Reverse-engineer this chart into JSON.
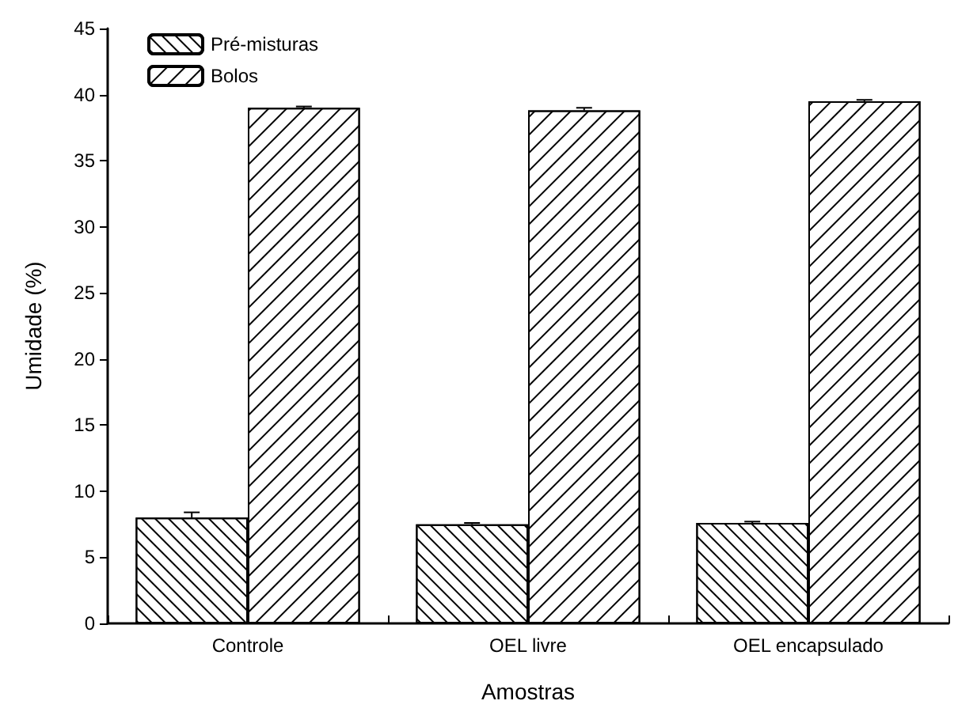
{
  "chart_data": {
    "type": "bar",
    "xlabel": "Amostras",
    "ylabel": "Umidade (%)",
    "categories": [
      "Controle",
      "OEL livre",
      "OEL encapsulado"
    ],
    "series": [
      {
        "name": "Pré-misturas",
        "color": "#ffffff",
        "values": [
          8.0,
          7.5,
          7.6
        ],
        "errors": [
          0.4,
          0.1,
          0.1
        ]
      },
      {
        "name": "Bolos",
        "color": "#ffffff",
        "values": [
          39.0,
          38.8,
          39.5
        ],
        "errors": [
          0.1,
          0.2,
          0.1
        ]
      }
    ],
    "ylim": [
      0,
      45
    ],
    "yticks": [
      0,
      5,
      10,
      15,
      20,
      25,
      30,
      35,
      40,
      45
    ],
    "grid": false,
    "legend": "top left"
  }
}
